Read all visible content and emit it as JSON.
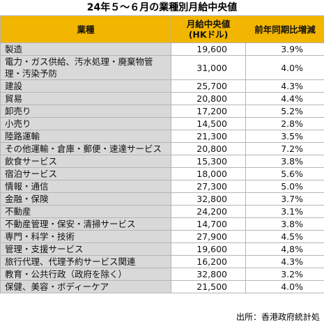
{
  "title": "24年５～６月の業種別月給中央値",
  "table": {
    "header": [
      "業種",
      "月給中央値\n(HKドル)",
      "前年同期比増減"
    ],
    "rows": [
      [
        "製造",
        "19,600",
        "3.9%"
      ],
      [
        "電力・ガス供給、汚水処理・廃棄物管理・汚染予防",
        "31,000",
        "4.0%"
      ],
      [
        "建設",
        "25,700",
        "4.3%"
      ],
      [
        "貿易",
        "20,800",
        "4.4%"
      ],
      [
        "卸売り",
        "17,200",
        "5.2%"
      ],
      [
        "小売り",
        "14,500",
        "2.8%"
      ],
      [
        "陸路運輸",
        "21,300",
        "3.5%"
      ],
      [
        "その他運輸・倉庫・郵便・速達サービス",
        "20,800",
        "7.2%"
      ],
      [
        "飲食サービス",
        "15,300",
        "3.8%"
      ],
      [
        "宿泊サービス",
        "18,000",
        "5.6%"
      ],
      [
        "情報・通信",
        "27,300",
        "5.0%"
      ],
      [
        "金融・保険",
        "32,800",
        "3.7%"
      ],
      [
        "不動産",
        "24,200",
        "3.1%"
      ],
      [
        "不動産管理・保安・清掃サービス",
        "14,700",
        "3.8%"
      ],
      [
        "専門・科学・技術",
        "27,900",
        "4.5%"
      ],
      [
        "管理・支援サービス",
        "19,600",
        "4,8%"
      ],
      [
        "旅行代理、代理予約サービス関連",
        "16,200",
        "4.3%"
      ],
      [
        "教育・公共行政（政府を除く）",
        "32,800",
        "3.2%"
      ],
      [
        "保健、美容・ボディーケア",
        "21,500",
        "4.0%"
      ]
    ]
  },
  "source": "出所：香港政府統計処"
}
